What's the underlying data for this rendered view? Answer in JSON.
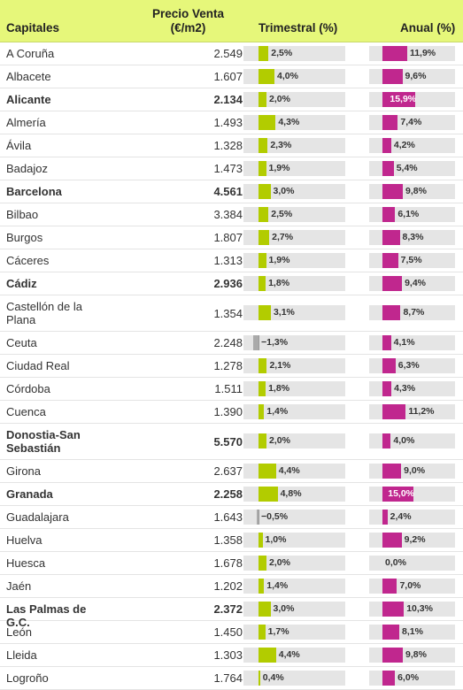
{
  "headers": {
    "capitales": "Capitales",
    "precio_l1": "Precio Venta",
    "precio_l2": "(€/m2)",
    "trimestral": "Trimestral (%)",
    "anual": "Anual (%)"
  },
  "colors": {
    "header_bg": "#e6f77a",
    "trimestral_bar": "#b2cc00",
    "negative_bar": "#aaaaaa",
    "anual_bar": "#c0278e"
  },
  "chart_data": {
    "type": "table",
    "columns": [
      "Capitales",
      "Precio Venta (€/m2)",
      "Trimestral (%)",
      "Anual (%)"
    ],
    "rows": [
      {
        "city": "A Coruña",
        "price": "2.549",
        "tri": 2.5,
        "tri_label": "2,5%",
        "anu": 11.9,
        "anu_label": "11,9%",
        "bold": false
      },
      {
        "city": "Albacete",
        "price": "1.607",
        "tri": 4.0,
        "tri_label": "4,0%",
        "anu": 9.6,
        "anu_label": "9,6%",
        "bold": false
      },
      {
        "city": "Alicante",
        "price": "2.134",
        "tri": 2.0,
        "tri_label": "2,0%",
        "anu": 15.9,
        "anu_label": "15,9%",
        "bold": true
      },
      {
        "city": "Almería",
        "price": "1.493",
        "tri": 4.3,
        "tri_label": "4,3%",
        "anu": 7.4,
        "anu_label": "7,4%",
        "bold": false
      },
      {
        "city": "Ávila",
        "price": "1.328",
        "tri": 2.3,
        "tri_label": "2,3%",
        "anu": 4.2,
        "anu_label": "4,2%",
        "bold": false
      },
      {
        "city": "Badajoz",
        "price": "1.473",
        "tri": 1.9,
        "tri_label": "1,9%",
        "anu": 5.4,
        "anu_label": "5,4%",
        "bold": false
      },
      {
        "city": "Barcelona",
        "price": "4.561",
        "tri": 3.0,
        "tri_label": "3,0%",
        "anu": 9.8,
        "anu_label": "9,8%",
        "bold": true
      },
      {
        "city": "Bilbao",
        "price": "3.384",
        "tri": 2.5,
        "tri_label": "2,5%",
        "anu": 6.1,
        "anu_label": "6,1%",
        "bold": false
      },
      {
        "city": "Burgos",
        "price": "1.807",
        "tri": 2.7,
        "tri_label": "2,7%",
        "anu": 8.3,
        "anu_label": "8,3%",
        "bold": false
      },
      {
        "city": "Cáceres",
        "price": "1.313",
        "tri": 1.9,
        "tri_label": "1,9%",
        "anu": 7.5,
        "anu_label": "7,5%",
        "bold": false
      },
      {
        "city": "Cádiz",
        "price": "2.936",
        "tri": 1.8,
        "tri_label": "1,8%",
        "anu": 9.4,
        "anu_label": "9,4%",
        "bold": true
      },
      {
        "city": "Castellón de la Plana",
        "price": "1.354",
        "tri": 3.1,
        "tri_label": "3,1%",
        "anu": 8.7,
        "anu_label": "8,7%",
        "bold": false,
        "tall": true
      },
      {
        "city": "Ceuta",
        "price": "2.248",
        "tri": -1.3,
        "tri_label": "−1,3%",
        "anu": 4.1,
        "anu_label": "4,1%",
        "bold": false
      },
      {
        "city": "Ciudad Real",
        "price": "1.278",
        "tri": 2.1,
        "tri_label": "2,1%",
        "anu": 6.3,
        "anu_label": "6,3%",
        "bold": false
      },
      {
        "city": "Córdoba",
        "price": "1.511",
        "tri": 1.8,
        "tri_label": "1,8%",
        "anu": 4.3,
        "anu_label": "4,3%",
        "bold": false
      },
      {
        "city": "Cuenca",
        "price": "1.390",
        "tri": 1.4,
        "tri_label": "1,4%",
        "anu": 11.2,
        "anu_label": "11,2%",
        "bold": false
      },
      {
        "city": "Donostia-San Sebastián",
        "price": "5.570",
        "tri": 2.0,
        "tri_label": "2,0%",
        "anu": 4.0,
        "anu_label": "4,0%",
        "bold": true,
        "tall": true
      },
      {
        "city": "Girona",
        "price": "2.637",
        "tri": 4.4,
        "tri_label": "4,4%",
        "anu": 9.0,
        "anu_label": "9,0%",
        "bold": false
      },
      {
        "city": "Granada",
        "price": "2.258",
        "tri": 4.8,
        "tri_label": "4,8%",
        "anu": 15.0,
        "anu_label": "15,0%",
        "bold": true
      },
      {
        "city": "Guadalajara",
        "price": "1.643",
        "tri": -0.5,
        "tri_label": "−0,5%",
        "anu": 2.4,
        "anu_label": "2,4%",
        "bold": false
      },
      {
        "city": "Huelva",
        "price": "1.358",
        "tri": 1.0,
        "tri_label": "1,0%",
        "anu": 9.2,
        "anu_label": "9,2%",
        "bold": false
      },
      {
        "city": "Huesca",
        "price": "1.678",
        "tri": 2.0,
        "tri_label": "2,0%",
        "anu": 0.0,
        "anu_label": "0,0%",
        "bold": false
      },
      {
        "city": "Jaén",
        "price": "1.202",
        "tri": 1.4,
        "tri_label": "1,4%",
        "anu": 7.0,
        "anu_label": "7,0%",
        "bold": false
      },
      {
        "city": "Las Palmas de G.C.",
        "price": "2.372",
        "tri": 3.0,
        "tri_label": "3,0%",
        "anu": 10.3,
        "anu_label": "10,3%",
        "bold": true
      },
      {
        "city": "León",
        "price": "1.450",
        "tri": 1.7,
        "tri_label": "1,7%",
        "anu": 8.1,
        "anu_label": "8,1%",
        "bold": false
      },
      {
        "city": "Lleida",
        "price": "1.303",
        "tri": 4.4,
        "tri_label": "4,4%",
        "anu": 9.8,
        "anu_label": "9,8%",
        "bold": false
      },
      {
        "city": "Logroño",
        "price": "1.764",
        "tri": 0.4,
        "tri_label": "0,4%",
        "anu": 6.0,
        "anu_label": "6,0%",
        "bold": false
      }
    ]
  }
}
